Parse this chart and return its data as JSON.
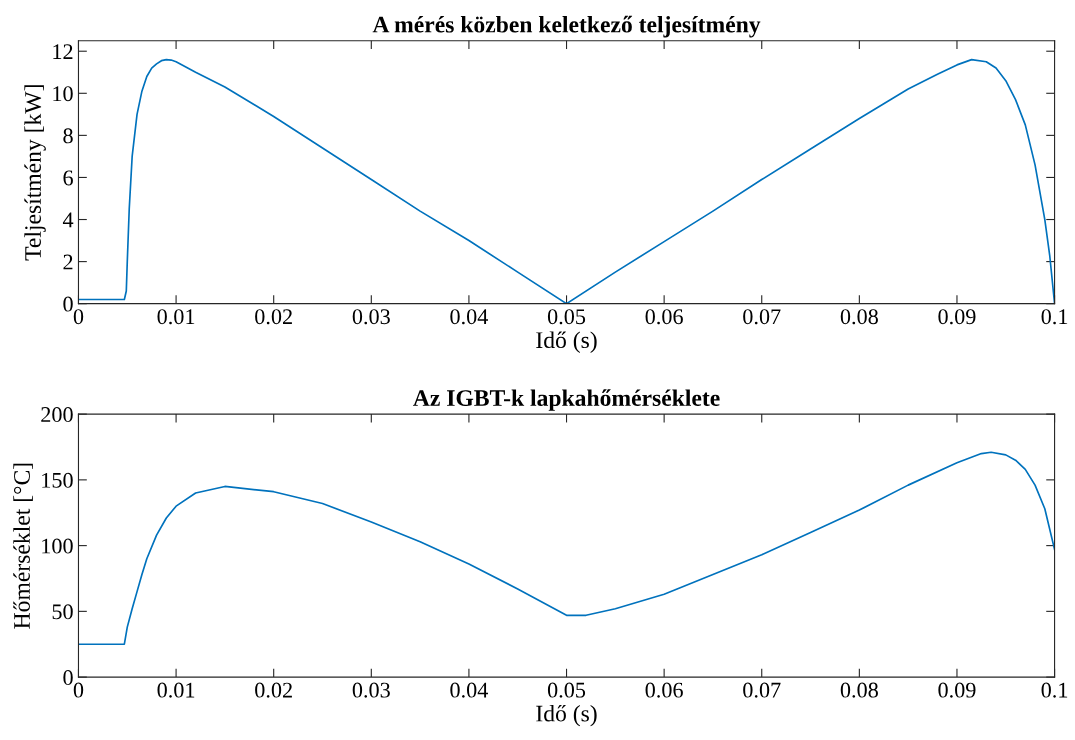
{
  "chart_data": [
    {
      "type": "line",
      "title": "A mérés közben keletkező teljesítmény",
      "xlabel": "Idő (s)",
      "ylabel": "Teljesítmény [kW]",
      "xlim": [
        0,
        0.1
      ],
      "xticks": [
        0,
        0.01,
        0.02,
        0.03,
        0.04,
        0.05,
        0.06,
        0.07,
        0.08,
        0.09,
        0.1
      ],
      "ylim": [
        0,
        12.5
      ],
      "yticks": [
        0,
        2,
        4,
        6,
        8,
        10,
        12
      ],
      "grid": false,
      "legend": false,
      "series": [
        {
          "color": "#0072bd",
          "x": [
            0,
            0.0047,
            0.0049,
            0.005,
            0.0052,
            0.0055,
            0.006,
            0.0065,
            0.007,
            0.0075,
            0.008,
            0.0085,
            0.009,
            0.0095,
            0.01,
            0.012,
            0.015,
            0.02,
            0.025,
            0.03,
            0.035,
            0.04,
            0.045,
            0.05,
            0.055,
            0.06,
            0.065,
            0.07,
            0.075,
            0.08,
            0.085,
            0.088,
            0.09,
            0.0915,
            0.093,
            0.094,
            0.095,
            0.096,
            0.097,
            0.098,
            0.099,
            0.0995,
            0.1
          ],
          "values": [
            0.2,
            0.2,
            0.6,
            2.0,
            4.5,
            7.0,
            9.0,
            10.1,
            10.8,
            11.2,
            11.4,
            11.55,
            11.6,
            11.58,
            11.5,
            11.0,
            10.3,
            8.9,
            7.4,
            5.9,
            4.4,
            3.0,
            1.5,
            0,
            1.5,
            2.95,
            4.4,
            5.9,
            7.35,
            8.8,
            10.2,
            10.9,
            11.35,
            11.6,
            11.5,
            11.2,
            10.6,
            9.7,
            8.5,
            6.6,
            4.0,
            2.3,
            0
          ]
        }
      ]
    },
    {
      "type": "line",
      "title": "Az IGBT-k lapkahőmérséklete",
      "xlabel": "Idő (s)",
      "ylabel": "Hőmérséklet [°C]",
      "xlim": [
        0,
        0.1
      ],
      "xticks": [
        0,
        0.01,
        0.02,
        0.03,
        0.04,
        0.05,
        0.06,
        0.07,
        0.08,
        0.09,
        0.1
      ],
      "ylim": [
        0,
        200
      ],
      "yticks": [
        0,
        50,
        100,
        150,
        200
      ],
      "grid": false,
      "legend": false,
      "series": [
        {
          "color": "#0072bd",
          "x": [
            0,
            0.0047,
            0.005,
            0.0055,
            0.006,
            0.0065,
            0.007,
            0.008,
            0.009,
            0.01,
            0.012,
            0.015,
            0.02,
            0.025,
            0.03,
            0.035,
            0.04,
            0.045,
            0.05,
            0.0505,
            0.052,
            0.055,
            0.06,
            0.065,
            0.07,
            0.075,
            0.08,
            0.085,
            0.09,
            0.0925,
            0.0935,
            0.095,
            0.096,
            0.097,
            0.098,
            0.099,
            0.1
          ],
          "values": [
            25,
            25,
            38,
            52,
            65,
            78,
            90,
            108,
            121,
            130,
            140,
            145,
            141,
            132,
            118,
            103,
            86,
            67,
            47,
            47,
            47,
            52,
            63,
            78,
            93,
            110,
            127,
            146,
            163,
            170,
            171,
            169,
            165,
            158,
            146,
            128,
            97
          ]
        }
      ]
    }
  ]
}
